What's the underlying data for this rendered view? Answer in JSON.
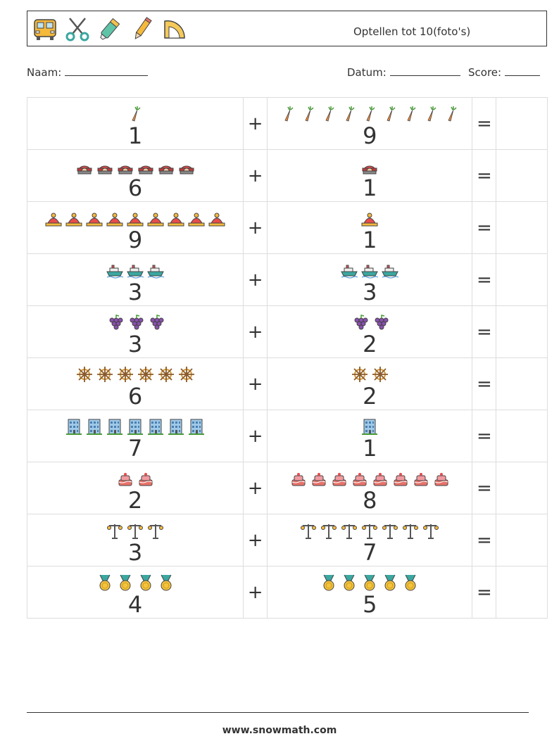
{
  "header": {
    "title": "Optellen tot 10(foto's)",
    "icons": [
      "school-bus-icon",
      "scissors-icon",
      "highlighter-icon",
      "pencil-icon",
      "protractor-icon"
    ]
  },
  "meta": {
    "name_label": "Naam:",
    "date_label": "Datum:",
    "score_label": "Score:"
  },
  "operators": {
    "plus": "+",
    "equals": "="
  },
  "rows": [
    {
      "a": {
        "count": 1,
        "num": "1",
        "icon": "carrot"
      },
      "b": {
        "count": 9,
        "num": "9",
        "icon": "carrot"
      }
    },
    {
      "a": {
        "count": 6,
        "num": "6",
        "icon": "helmet"
      },
      "b": {
        "count": 1,
        "num": "1",
        "icon": "helmet"
      }
    },
    {
      "a": {
        "count": 9,
        "num": "9",
        "icon": "fire-helmet"
      },
      "b": {
        "count": 1,
        "num": "1",
        "icon": "fire-helmet"
      }
    },
    {
      "a": {
        "count": 3,
        "num": "3",
        "icon": "ship"
      },
      "b": {
        "count": 3,
        "num": "3",
        "icon": "ship"
      }
    },
    {
      "a": {
        "count": 3,
        "num": "3",
        "icon": "grapes"
      },
      "b": {
        "count": 2,
        "num": "2",
        "icon": "grapes"
      }
    },
    {
      "a": {
        "count": 6,
        "num": "6",
        "icon": "ship-wheel"
      },
      "b": {
        "count": 2,
        "num": "2",
        "icon": "ship-wheel"
      }
    },
    {
      "a": {
        "count": 7,
        "num": "7",
        "icon": "building"
      },
      "b": {
        "count": 1,
        "num": "1",
        "icon": "building"
      }
    },
    {
      "a": {
        "count": 2,
        "num": "2",
        "icon": "cake"
      },
      "b": {
        "count": 8,
        "num": "8",
        "icon": "cake"
      }
    },
    {
      "a": {
        "count": 3,
        "num": "3",
        "icon": "street-lamp"
      },
      "b": {
        "count": 7,
        "num": "7",
        "icon": "street-lamp"
      }
    },
    {
      "a": {
        "count": 4,
        "num": "4",
        "icon": "medal"
      },
      "b": {
        "count": 5,
        "num": "5",
        "icon": "medal"
      }
    }
  ],
  "footer": {
    "website": "www.snowmath.com"
  }
}
